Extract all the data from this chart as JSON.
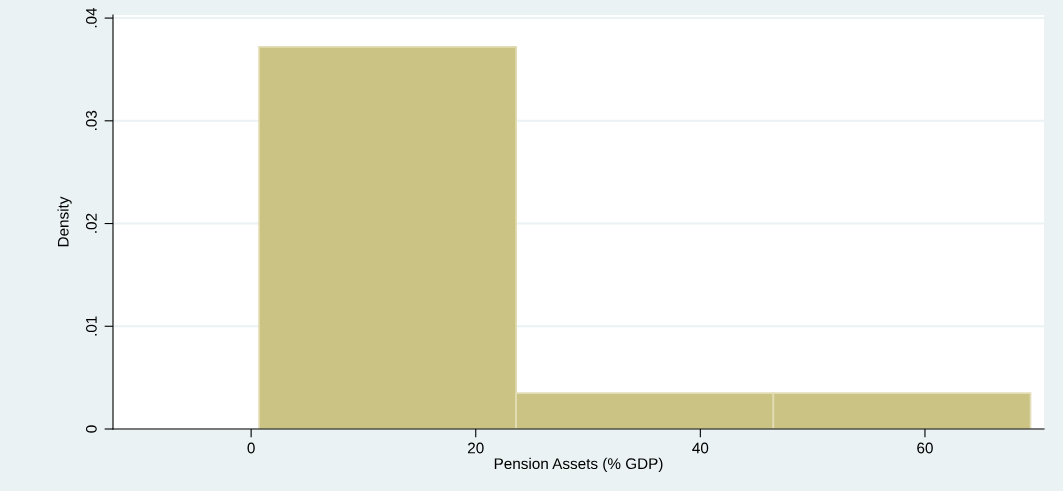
{
  "chart_data": {
    "type": "histogram",
    "xlabel": "Pension Assets (% GDP)",
    "ylabel": "Density",
    "bins": [
      0.7,
      23.6,
      46.5,
      69.4
    ],
    "values": [
      0.0372,
      0.0035,
      0.0035
    ],
    "color": "#cbc383",
    "xlim": [
      -12.3,
      70.6
    ],
    "ylim": [
      0,
      0.0403
    ],
    "xticks": [
      0,
      20,
      40,
      60
    ],
    "yticks": [
      0,
      {
        "value": 0.01,
        "label": ".01"
      },
      {
        "value": 0.02,
        "label": ".02"
      },
      {
        "value": 0.03,
        "label": ".03"
      },
      {
        "value": 0.04,
        "label": ".04"
      }
    ],
    "grid": "y"
  }
}
